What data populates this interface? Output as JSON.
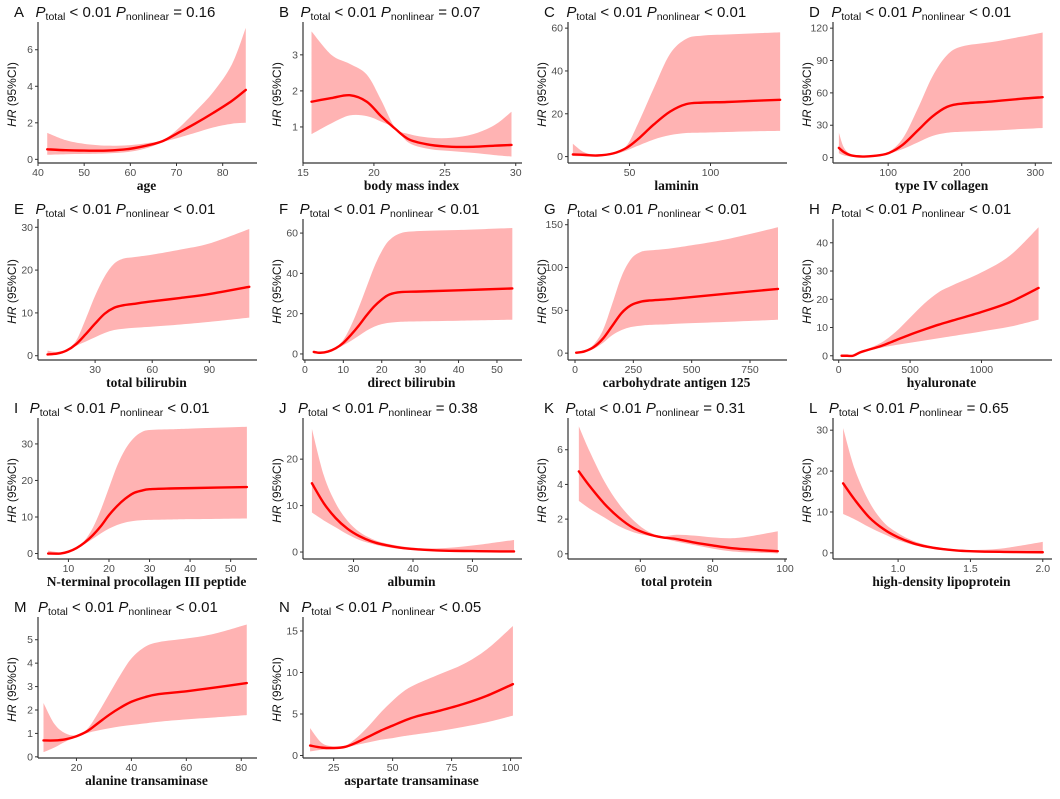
{
  "chart_data": [
    {
      "type": "line",
      "panel": "A",
      "title_letter": "A",
      "p_total": "< 0.01",
      "p_nonlinear": "= 0.16",
      "xlabel": "age",
      "ylabel": "HR (95%CI)",
      "xlim": [
        40,
        87
      ],
      "ylim": [
        -0.2,
        7.3
      ],
      "xticks": [
        40,
        50,
        60,
        70,
        80
      ],
      "yticks": [
        0,
        2,
        4,
        6
      ],
      "x": [
        42,
        46,
        50,
        55,
        60,
        64,
        67,
        70,
        74,
        78,
        82,
        85
      ],
      "hr": [
        0.55,
        0.5,
        0.48,
        0.48,
        0.58,
        0.78,
        1.0,
        1.4,
        1.95,
        2.55,
        3.2,
        3.8
      ],
      "lower": [
        0.25,
        0.28,
        0.3,
        0.33,
        0.42,
        0.65,
        0.95,
        1.15,
        1.45,
        1.75,
        1.95,
        2.0
      ],
      "upper": [
        1.45,
        1.05,
        0.85,
        0.75,
        0.78,
        0.9,
        1.05,
        1.6,
        2.6,
        3.7,
        5.2,
        7.2
      ]
    },
    {
      "type": "line",
      "panel": "B",
      "title_letter": "B",
      "p_total": "< 0.01",
      "p_nonlinear": "= 0.07",
      "xlabel": "body mass index",
      "ylabel": "HR (95%CI)",
      "xlim": [
        15,
        30.3
      ],
      "ylim": [
        0,
        3.8
      ],
      "xticks": [
        15,
        20,
        25,
        30
      ],
      "yticks": [
        1,
        2,
        3
      ],
      "x": [
        15.6,
        17,
        18.3,
        19.5,
        20.5,
        21.5,
        22.5,
        24,
        25.5,
        27,
        28.5,
        29.7
      ],
      "hr": [
        1.7,
        1.8,
        1.88,
        1.7,
        1.3,
        0.95,
        0.65,
        0.5,
        0.45,
        0.45,
        0.48,
        0.5
      ],
      "lower": [
        0.8,
        1.1,
        1.32,
        1.3,
        1.15,
        0.95,
        0.55,
        0.38,
        0.33,
        0.28,
        0.22,
        0.18
      ],
      "upper": [
        3.65,
        3.0,
        2.75,
        2.45,
        1.75,
        0.98,
        0.8,
        0.7,
        0.7,
        0.8,
        1.05,
        1.42
      ]
    },
    {
      "type": "line",
      "panel": "C",
      "title_letter": "C",
      "p_total": "< 0.01",
      "p_nonlinear": "< 0.01",
      "xlabel": "laminin",
      "ylabel": "HR (95%CI)",
      "xlim": [
        12,
        146
      ],
      "ylim": [
        -3,
        61
      ],
      "xticks": [
        50,
        100
      ],
      "yticks": [
        0,
        20,
        40,
        60
      ],
      "x": [
        15,
        22,
        30,
        40,
        48,
        55,
        65,
        75,
        85,
        95,
        110,
        125,
        143
      ],
      "hr": [
        1,
        0.8,
        0.5,
        1.5,
        4,
        8,
        15,
        21,
        24.5,
        25.2,
        25.5,
        26,
        26.5
      ],
      "lower": [
        0.3,
        0.2,
        0.2,
        1.0,
        2.8,
        5,
        8,
        10,
        11,
        11.2,
        11.5,
        11.8,
        12
      ],
      "upper": [
        6,
        2,
        1,
        2,
        5,
        15,
        32,
        48,
        55,
        56.5,
        57,
        57.5,
        58
      ]
    },
    {
      "type": "line",
      "panel": "D",
      "title_letter": "D",
      "p_total": "< 0.01",
      "p_nonlinear": "< 0.01",
      "xlabel": "type IV collagen",
      "ylabel": "HR (95%CI)",
      "xlim": [
        25,
        320
      ],
      "ylim": [
        -5,
        122
      ],
      "xticks": [
        100,
        200,
        300
      ],
      "yticks": [
        0,
        30,
        60,
        90,
        120
      ],
      "x": [
        33,
        40,
        50,
        65,
        80,
        100,
        120,
        140,
        160,
        180,
        200,
        240,
        280,
        310
      ],
      "hr": [
        9,
        5,
        2,
        1,
        1.5,
        4,
        12,
        25,
        38,
        47,
        50,
        52,
        54.5,
        56
      ],
      "lower": [
        4,
        2,
        1,
        0.5,
        1.2,
        3.5,
        8,
        14,
        20,
        23,
        24,
        25,
        26.5,
        27.5
      ],
      "upper": [
        23,
        9,
        3,
        1.5,
        2,
        5,
        18,
        45,
        75,
        95,
        103,
        107,
        112,
        116
      ]
    },
    {
      "type": "line",
      "panel": "E",
      "title_letter": "E",
      "p_total": "< 0.01",
      "p_nonlinear": "< 0.01",
      "xlabel": "total bilirubin",
      "ylabel": "HR (95%CI)",
      "xlim": [
        0,
        114
      ],
      "ylim": [
        -1,
        31
      ],
      "xticks": [
        30,
        60,
        90
      ],
      "yticks": [
        0,
        10,
        20,
        30
      ],
      "x": [
        5,
        10,
        15,
        20,
        25,
        30,
        35,
        40,
        45,
        50,
        60,
        75,
        90,
        111
      ],
      "hr": [
        0.3,
        0.5,
        1.2,
        2.7,
        5,
        7.5,
        9.8,
        11.2,
        11.8,
        12.1,
        12.7,
        13.5,
        14.4,
        16.1
      ],
      "lower": [
        0.1,
        0.3,
        1.0,
        2.3,
        3.3,
        4.3,
        5.3,
        6,
        6.3,
        6.5,
        6.8,
        7.3,
        7.9,
        8.9
      ],
      "upper": [
        1.2,
        0.9,
        1.5,
        3.5,
        8.5,
        14,
        18.5,
        21.5,
        22.7,
        23,
        23.6,
        24.8,
        26.2,
        29.6
      ]
    },
    {
      "type": "line",
      "panel": "F",
      "title_letter": "F",
      "p_total": "< 0.01",
      "p_nonlinear": "< 0.01",
      "xlabel": "direct bilirubin",
      "ylabel": "HR (95%CI)",
      "xlim": [
        -0.5,
        56
      ],
      "ylim": [
        -3,
        65
      ],
      "xticks": [
        0,
        10,
        20,
        30,
        40,
        50
      ],
      "yticks": [
        0,
        20,
        40,
        60
      ],
      "x": [
        2.3,
        4,
        6,
        8,
        10,
        12,
        14,
        16,
        18,
        20,
        22,
        25,
        30,
        40,
        54
      ],
      "hr": [
        1,
        0.6,
        1.2,
        2.8,
        5.5,
        9.5,
        14,
        19,
        23.5,
        27,
        29.5,
        30.7,
        31,
        31.6,
        32.5
      ],
      "lower": [
        0.3,
        0.3,
        0.9,
        2.3,
        4.3,
        6.5,
        9,
        11.5,
        13.5,
        14.8,
        15.5,
        16,
        16.2,
        16.5,
        17
      ],
      "upper": [
        1.8,
        1,
        1.6,
        3.3,
        7,
        14,
        23,
        33,
        43,
        51,
        56.5,
        60,
        61,
        61.5,
        62.5
      ]
    },
    {
      "type": "line",
      "panel": "G",
      "title_letter": "G",
      "p_total": "< 0.01",
      "p_nonlinear": "< 0.01",
      "xlabel": "carbohydrate antigen 125",
      "ylabel": "HR (95%CI)",
      "xlim": [
        -30,
        900
      ],
      "ylim": [
        -8,
        152
      ],
      "xticks": [
        0,
        250,
        500,
        750
      ],
      "yticks": [
        0,
        50,
        100,
        150
      ],
      "x": [
        5,
        40,
        80,
        120,
        160,
        200,
        240,
        280,
        320,
        400,
        500,
        650,
        870
      ],
      "hr": [
        0.5,
        2,
        7,
        17,
        32,
        47,
        56,
        60,
        61.5,
        63,
        65.5,
        69.5,
        75
      ],
      "lower": [
        0.2,
        1.5,
        5,
        12,
        21,
        27,
        30.5,
        32,
        33,
        33.8,
        35,
        36.5,
        39
      ],
      "upper": [
        1,
        3,
        10,
        27,
        58,
        90,
        110,
        118,
        120,
        122,
        126,
        133,
        147
      ]
    },
    {
      "type": "line",
      "panel": "H",
      "title_letter": "H",
      "p_total": "< 0.01",
      "p_nonlinear": "< 0.01",
      "xlabel": "hyaluronate",
      "ylabel": "HR (95%CI)",
      "xlim": [
        -40,
        1480
      ],
      "ylim": [
        -1.5,
        47
      ],
      "xticks": [
        0,
        500,
        1000
      ],
      "yticks": [
        0,
        10,
        20,
        30,
        40
      ],
      "x": [
        20,
        60,
        100,
        150,
        200,
        300,
        400,
        500,
        600,
        700,
        800,
        1000,
        1200,
        1400
      ],
      "hr": [
        0,
        0,
        0,
        1.2,
        2,
        3.5,
        5.5,
        7.5,
        9.3,
        11,
        12.5,
        15.5,
        19,
        24
      ],
      "lower": [
        -0.2,
        -0.2,
        -0.2,
        0.9,
        1.7,
        2.9,
        3.8,
        4.6,
        5.4,
        6.2,
        7,
        8.6,
        10.3,
        12.8
      ],
      "upper": [
        0.2,
        0.2,
        0.3,
        1.5,
        2.4,
        4.7,
        8.5,
        13.5,
        18.5,
        22.5,
        25,
        29.5,
        35.5,
        45.5
      ]
    },
    {
      "type": "line",
      "panel": "I",
      "title_letter": "I",
      "p_total": "< 0.01",
      "p_nonlinear": "< 0.01",
      "xlabel": "N-terminal procollagen III peptide",
      "ylabel": "HR (95%CI)",
      "xlim": [
        2.5,
        56
      ],
      "ylim": [
        -1.5,
        36
      ],
      "xticks": [
        10,
        20,
        30,
        40,
        50
      ],
      "yticks": [
        0,
        10,
        20,
        30
      ],
      "x": [
        5,
        8,
        10,
        12,
        14,
        16,
        18,
        20,
        22,
        24,
        26,
        28,
        30,
        35,
        40,
        54
      ],
      "hr": [
        0,
        0,
        0.5,
        1.5,
        3,
        5,
        7.5,
        10.5,
        13,
        15,
        16.5,
        17.2,
        17.6,
        17.8,
        17.9,
        18.2
      ],
      "lower": [
        -0.2,
        -0.2,
        0.3,
        1.2,
        2.6,
        4,
        5.5,
        6.8,
        7.8,
        8.5,
        8.9,
        9.1,
        9.2,
        9.3,
        9.4,
        9.6
      ],
      "upper": [
        0.8,
        0.3,
        0.7,
        1.8,
        3.6,
        7,
        12,
        18,
        24,
        28.5,
        31.5,
        33.2,
        33.8,
        34,
        34.2,
        34.7
      ]
    },
    {
      "type": "line",
      "panel": "J",
      "title_letter": "J",
      "p_total": "< 0.01",
      "p_nonlinear": "= 0.38",
      "xlabel": "albumin",
      "ylabel": "HR (95%CI)",
      "xlim": [
        21.5,
        58
      ],
      "ylim": [
        -1.5,
        28
      ],
      "xticks": [
        30,
        40,
        50
      ],
      "yticks": [
        0,
        10,
        20
      ],
      "x": [
        23,
        25,
        27,
        29,
        31,
        33,
        35,
        38,
        41,
        44,
        47,
        50,
        53,
        57
      ],
      "hr": [
        14.8,
        10.5,
        7.3,
        5,
        3.4,
        2.3,
        1.6,
        0.9,
        0.55,
        0.35,
        0.25,
        0.2,
        0.15,
        0.12
      ],
      "lower": [
        8.5,
        6.8,
        5.3,
        3.8,
        2.6,
        1.8,
        1.2,
        0.65,
        0.35,
        0.2,
        0.1,
        0.05,
        0.02,
        0.01
      ],
      "upper": [
        26.5,
        16.5,
        10.5,
        6.7,
        4.3,
        2.9,
        2.0,
        1.25,
        0.85,
        0.8,
        1.0,
        1.4,
        1.9,
        2.6
      ]
    },
    {
      "type": "line",
      "panel": "K",
      "title_letter": "K",
      "p_total": "< 0.01",
      "p_nonlinear": "= 0.31",
      "xlabel": "total protein",
      "ylabel": "HR (95%CI)",
      "xlim": [
        40,
        100
      ],
      "ylim": [
        -0.3,
        7.6
      ],
      "xticks": [
        60,
        80,
        100
      ],
      "yticks": [
        0,
        2,
        4,
        6
      ],
      "x": [
        43,
        46,
        50,
        54,
        58,
        62,
        66,
        70,
        75,
        80,
        85,
        90,
        98
      ],
      "hr": [
        4.75,
        3.9,
        2.9,
        2.1,
        1.5,
        1.15,
        0.95,
        0.85,
        0.65,
        0.48,
        0.33,
        0.25,
        0.15
      ],
      "lower": [
        3.05,
        2.6,
        2.1,
        1.6,
        1.25,
        1.05,
        0.92,
        0.7,
        0.5,
        0.3,
        0.15,
        0.08,
        0.02
      ],
      "upper": [
        7.35,
        5.9,
        4.2,
        2.9,
        1.95,
        1.3,
        1.02,
        1.1,
        1.05,
        0.95,
        0.9,
        1.0,
        1.3
      ]
    },
    {
      "type": "line",
      "panel": "L",
      "title_letter": "L",
      "p_total": "< 0.01",
      "p_nonlinear": "= 0.65",
      "xlabel": "high-density lipoprotein",
      "ylabel": "HR (95%CI)",
      "xlim": [
        0.55,
        2.05
      ],
      "ylim": [
        -1.5,
        32
      ],
      "xticks": [
        1.0,
        1.5,
        2.0
      ],
      "yticks": [
        0,
        10,
        20,
        30
      ],
      "x": [
        0.62,
        0.7,
        0.8,
        0.9,
        1.0,
        1.1,
        1.2,
        1.3,
        1.4,
        1.5,
        1.6,
        1.7,
        1.8,
        2.0
      ],
      "hr": [
        17,
        13,
        8.7,
        5.8,
        3.8,
        2.4,
        1.5,
        0.95,
        0.6,
        0.4,
        0.3,
        0.25,
        0.2,
        0.15
      ],
      "lower": [
        9.5,
        8.2,
        6.3,
        4.6,
        3.1,
        2.0,
        1.2,
        0.7,
        0.4,
        0.25,
        0.15,
        0.08,
        0.05,
        0.02
      ],
      "upper": [
        30.5,
        20.5,
        12.5,
        7.5,
        4.8,
        3.0,
        1.9,
        1.25,
        0.85,
        0.7,
        0.75,
        1.0,
        1.5,
        2.7
      ]
    },
    {
      "type": "line",
      "panel": "M",
      "title_letter": "M",
      "p_total": "< 0.01",
      "p_nonlinear": "< 0.01",
      "xlabel": "alanine transaminase",
      "ylabel": "HR (95%CI)",
      "xlim": [
        6,
        85
      ],
      "ylim": [
        -0.05,
        5.8
      ],
      "xticks": [
        20,
        40,
        60,
        80
      ],
      "yticks": [
        0,
        1,
        2,
        3,
        4,
        5
      ],
      "x": [
        8,
        12,
        16,
        20,
        24,
        28,
        32,
        36,
        40,
        45,
        50,
        60,
        70,
        82
      ],
      "hr": [
        0.7,
        0.7,
        0.75,
        0.88,
        1.1,
        1.45,
        1.8,
        2.1,
        2.35,
        2.55,
        2.68,
        2.8,
        2.95,
        3.15
      ],
      "lower": [
        0.2,
        0.4,
        0.65,
        0.85,
        1.02,
        1.13,
        1.22,
        1.3,
        1.36,
        1.43,
        1.5,
        1.6,
        1.68,
        1.78
      ],
      "upper": [
        2.3,
        1.4,
        1.0,
        0.92,
        1.2,
        1.9,
        2.7,
        3.5,
        4.2,
        4.7,
        4.9,
        5.05,
        5.25,
        5.65
      ]
    },
    {
      "type": "line",
      "panel": "N",
      "title_letter": "N",
      "p_total": "< 0.01",
      "p_nonlinear": "< 0.05",
      "xlabel": "aspartate transaminase",
      "ylabel": "HR (95%CI)",
      "xlim": [
        12,
        104
      ],
      "ylim": [
        -0.3,
        16.2
      ],
      "xticks": [
        25,
        50,
        75,
        100
      ],
      "yticks": [
        0,
        5,
        10,
        15
      ],
      "x": [
        15,
        20,
        25,
        30,
        35,
        40,
        45,
        50,
        55,
        60,
        70,
        80,
        90,
        101
      ],
      "hr": [
        1.2,
        0.95,
        0.9,
        1.05,
        1.6,
        2.3,
        3.0,
        3.6,
        4.2,
        4.7,
        5.4,
        6.2,
        7.2,
        8.6
      ],
      "lower": [
        0.5,
        0.7,
        0.75,
        0.95,
        1.3,
        1.6,
        1.9,
        2.1,
        2.35,
        2.55,
        2.95,
        3.45,
        4.0,
        4.8
      ],
      "upper": [
        3.3,
        1.5,
        1.1,
        1.2,
        2.2,
        3.6,
        5.2,
        6.6,
        7.8,
        8.6,
        9.8,
        11.0,
        12.8,
        15.6
      ]
    }
  ]
}
